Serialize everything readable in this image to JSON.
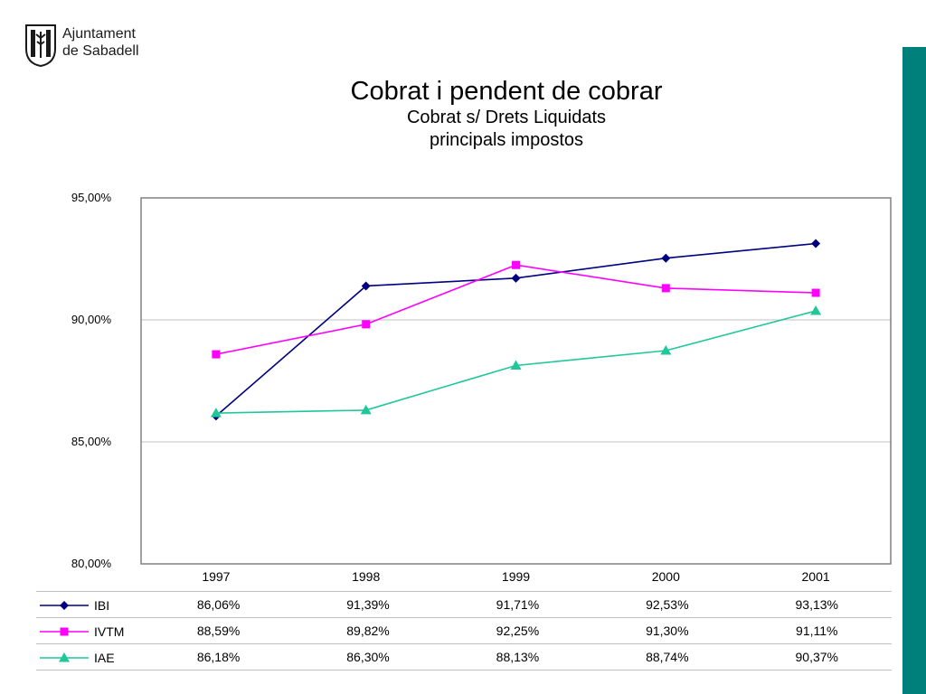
{
  "header": {
    "logo_line1": "Ajuntament",
    "logo_line2": "de Sabadell",
    "title": "Cobrat i pendent de cobrar",
    "subtitle1": "Cobrat s/ Drets Liquidats",
    "subtitle2": "principals impostos"
  },
  "colors": {
    "accent_bar": "#00807a",
    "IBI": "#000080",
    "IVTM": "#ff00ff",
    "IAE": "#1fc79a"
  },
  "chart_data": {
    "type": "line",
    "title": "Cobrat i pendent de cobrar",
    "subtitle": "Cobrat s/ Drets Liquidats principals impostos",
    "categories": [
      "1997",
      "1998",
      "1999",
      "2000",
      "2001"
    ],
    "series": [
      {
        "name": "IBI",
        "marker": "diamond",
        "color": "#000080",
        "values": [
          86.06,
          91.39,
          91.71,
          92.53,
          93.13
        ]
      },
      {
        "name": "IVTM",
        "marker": "square",
        "color": "#ff00ff",
        "values": [
          88.59,
          89.82,
          92.25,
          91.3,
          91.11
        ]
      },
      {
        "name": "IAE",
        "marker": "triangle",
        "color": "#1fc79a",
        "values": [
          86.18,
          86.3,
          88.13,
          88.74,
          90.37
        ]
      }
    ],
    "ylim": [
      80,
      95
    ],
    "yticks": [
      80,
      85,
      90,
      95
    ],
    "ytick_labels": [
      "80,00%",
      "85,00%",
      "90,00%",
      "95,00%"
    ],
    "grid": true,
    "legend": "data-table-below",
    "table": {
      "IBI": [
        "86,06%",
        "91,39%",
        "91,71%",
        "92,53%",
        "93,13%"
      ],
      "IVTM": [
        "88,59%",
        "89,82%",
        "92,25%",
        "91,30%",
        "91,11%"
      ],
      "IAE": [
        "86,18%",
        "86,30%",
        "88,13%",
        "88,74%",
        "90,37%"
      ]
    }
  }
}
